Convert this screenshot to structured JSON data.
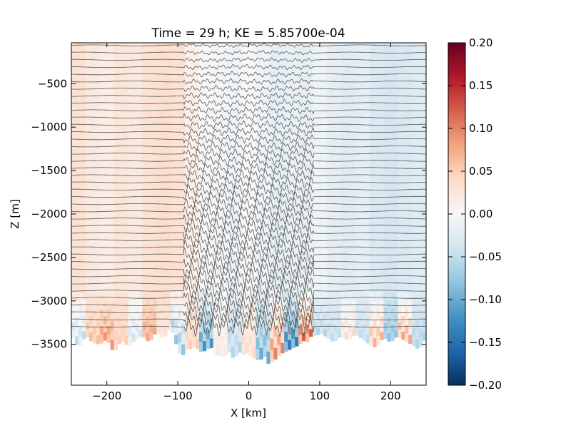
{
  "chart_data": {
    "type": "heatmap",
    "title": "Time = 29 h; KE = 5.85700e-04",
    "xlabel": "X [km]",
    "ylabel": "Z [m]",
    "xlim": [
      -250,
      250
    ],
    "ylim": [
      -3970,
      -30
    ],
    "x_ticks": [
      -200,
      -100,
      0,
      100,
      200
    ],
    "x_tick_labels": [
      "−200",
      "−100",
      "0",
      "100",
      "200"
    ],
    "y_ticks": [
      -500,
      -1000,
      -1500,
      -2000,
      -2500,
      -3000,
      -3500
    ],
    "y_tick_labels": [
      "−500",
      "−1000",
      "−1500",
      "−2000",
      "−2500",
      "−3000",
      "−3500"
    ],
    "colorbar": {
      "colormap": "RdBu_r",
      "range": [
        -0.2,
        0.2
      ],
      "ticks": [
        0.2,
        0.15,
        0.1,
        0.05,
        0.0,
        -0.05,
        -0.1,
        -0.15,
        -0.2
      ],
      "tick_labels": [
        "0.20",
        "0.15",
        "0.10",
        "0.05",
        "0.00",
        "−0.05",
        "−0.10",
        "−0.15",
        "−0.20"
      ]
    },
    "field_columns": {
      "x": [
        -240,
        -220,
        -200,
        -180,
        -160,
        -140,
        -120,
        -100,
        -80,
        -60,
        -40,
        -20,
        0,
        20,
        40,
        60,
        80,
        100,
        120,
        140,
        160,
        180,
        200,
        220,
        240
      ],
      "upper_value": [
        0.03,
        0.02,
        0.015,
        0.025,
        0.02,
        0.03,
        0.035,
        0.03,
        0.01,
        0.0,
        -0.005,
        -0.01,
        0.0,
        -0.01,
        -0.02,
        -0.015,
        -0.02,
        -0.01,
        -0.02,
        -0.025,
        -0.02,
        -0.03,
        -0.035,
        -0.03,
        -0.025
      ],
      "deep_value": [
        -0.05,
        0.06,
        0.09,
        0.05,
        -0.04,
        0.08,
        0.02,
        -0.08,
        0.05,
        -0.12,
        0.02,
        -0.06,
        0.04,
        -0.1,
        0.1,
        -0.14,
        0.12,
        -0.06,
        -0.05,
        0.04,
        -0.05,
        0.07,
        -0.08,
        0.08,
        -0.06
      ]
    },
    "bottom_depth": {
      "x": [
        -250,
        -240,
        -230,
        -220,
        -210,
        -200,
        -190,
        -180,
        -170,
        -160,
        -150,
        -140,
        -130,
        -120,
        -110,
        -100,
        -95,
        -90,
        -85,
        -80,
        -75,
        -70,
        -65,
        -60,
        -55,
        -50,
        -45,
        -40,
        -35,
        -30,
        -25,
        -20,
        -15,
        -10,
        -5,
        0,
        5,
        10,
        15,
        20,
        25,
        30,
        35,
        40,
        45,
        50,
        55,
        60,
        65,
        70,
        75,
        80,
        85,
        90,
        95,
        100,
        110,
        120,
        130,
        140,
        150,
        160,
        170,
        180,
        190,
        200,
        210,
        220,
        230,
        240,
        250
      ],
      "z": [
        -3380,
        -3550,
        -3400,
        -3480,
        -3500,
        -3440,
        -3600,
        -3460,
        -3520,
        -3450,
        -3400,
        -3480,
        -3350,
        -3440,
        -3300,
        -3560,
        -3640,
        -3600,
        -3520,
        -3580,
        -3480,
        -3620,
        -3550,
        -3600,
        -3500,
        -3580,
        -3660,
        -3600,
        -3700,
        -3560,
        -3620,
        -3680,
        -3580,
        -3600,
        -3640,
        -3560,
        -3700,
        -3620,
        -3740,
        -3600,
        -3680,
        -3760,
        -3640,
        -3700,
        -3560,
        -3640,
        -3520,
        -3600,
        -3480,
        -3560,
        -3420,
        -3500,
        -3440,
        -3380,
        -3420,
        -3360,
        -3420,
        -3480,
        -3400,
        -3460,
        -3380,
        -3440,
        -3500,
        -3540,
        -3420,
        -3480,
        -3400,
        -3460,
        -3500,
        -3560,
        -3420
      ]
    },
    "isopycnals": {
      "count": 40,
      "top_z": -60,
      "spacing": 83,
      "annotation": "black contour lines of density, wavy between X = -90 and X = 90 km"
    },
    "grid": false
  }
}
